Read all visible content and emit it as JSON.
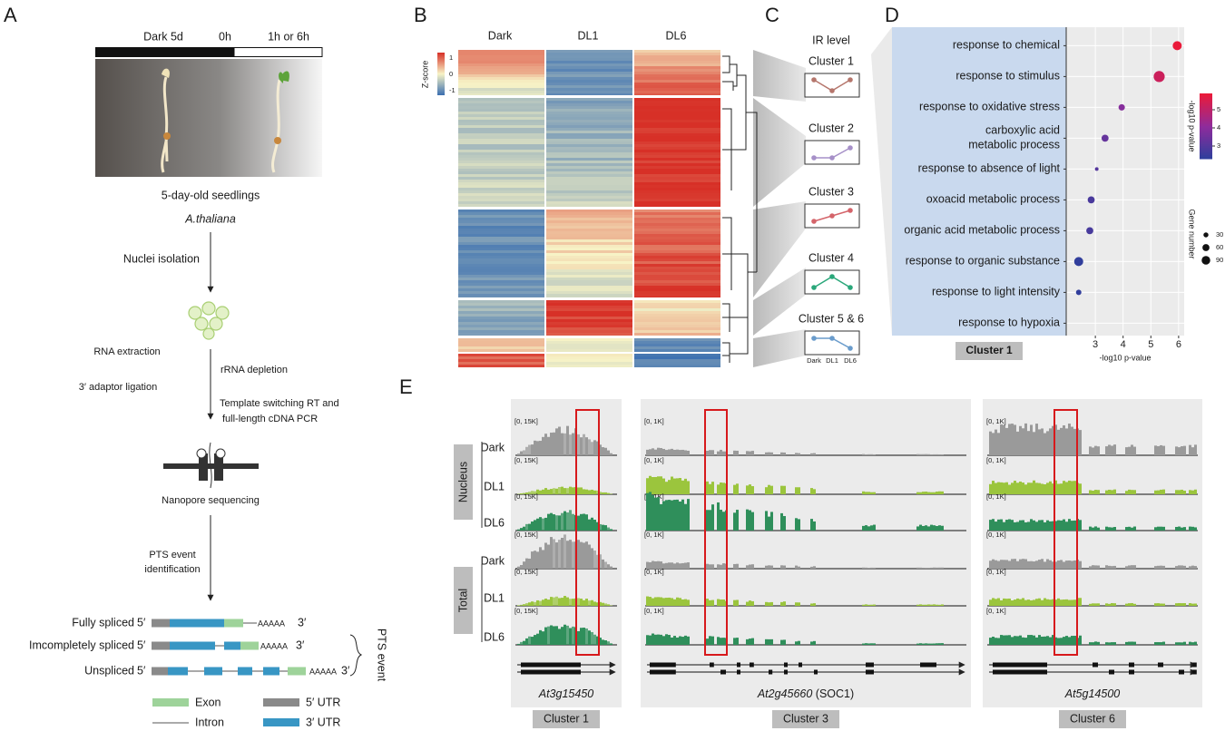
{
  "panel_a": {
    "letter": "A",
    "timeline": [
      "Dark 5d",
      "0h",
      "1h or 6h"
    ],
    "seedlings": "5-day-old seedlings",
    "species": "A.thaliana",
    "nuclei": "Nuclei isolation",
    "rna": "RNA extraction",
    "rrna": "rRNA depletion",
    "adaptor": "3′ adaptor ligation",
    "rt": [
      "Template switching RT and",
      "full-length cDNA PCR"
    ],
    "nanopore": "Nanopore sequencing",
    "pts_step": [
      "PTS event",
      "identification"
    ],
    "isoforms": [
      "Fully spliced",
      "Imcompletely spliced",
      "Unspliced"
    ],
    "five": "5′",
    "three": "3′",
    "polya": "AAAAA",
    "pts_event": "PTS event",
    "legend": [
      "Exon",
      "Intron",
      "5′ UTR",
      "3′ UTR"
    ]
  },
  "panel_b": {
    "letter": "B",
    "columns": [
      "Dark",
      "DL1",
      "DL6"
    ],
    "scale_label": "Z-score",
    "scale_ticks": [
      "1",
      "0",
      "-1"
    ]
  },
  "panel_c": {
    "letter": "C",
    "title": "IR level",
    "clusters": [
      "Cluster 1",
      "Cluster 2",
      "Cluster 3",
      "Cluster 4",
      "Cluster 5 & 6"
    ],
    "axis": [
      "Dark",
      "DL1",
      "DL6"
    ]
  },
  "chart_data": {
    "type": "scatter",
    "letter": "D",
    "categories": [
      "response to chemical",
      "response to stimulus",
      "response to oxidative stress",
      "carboxylic acid metabolic process",
      "response to absence of light",
      "oxoacid metabolic process",
      "organic acid metabolic process",
      "response to organic substance",
      "response to light intensity",
      "response to hypoxia"
    ],
    "values": [
      5.95,
      5.3,
      3.95,
      3.35,
      3.05,
      2.85,
      2.8,
      2.4,
      2.4,
      null
    ],
    "sizes": [
      100,
      150,
      50,
      60,
      16,
      60,
      60,
      100,
      36,
      null
    ],
    "xlabel": "-log10 p-value",
    "xlim": [
      1.95,
      6.2
    ],
    "xticks": [
      3,
      4,
      5,
      6
    ],
    "grid": true,
    "color_label": "-log10 p-value",
    "clim": [
      2.3,
      5.9
    ],
    "color_ticks": [
      3,
      4,
      5
    ],
    "colormap": [
      "#2b3f9c",
      "#8e2c9c",
      "#ea1a3a"
    ],
    "size_label": "Gene number",
    "size_ticks": [
      30,
      60,
      90
    ],
    "highlighted": [
      4,
      8
    ],
    "highlight_color": "#e0262c",
    "footer": "Cluster 1"
  },
  "panel_e": {
    "letter": "E",
    "groups": [
      "Nucleus",
      "Total"
    ],
    "tracks": [
      "Dark",
      "DL1",
      "DL6"
    ],
    "genes": [
      {
        "name": "At3g15450",
        "cluster": "Cluster 1",
        "range": "[0, 15K]"
      },
      {
        "name": "At2g45660",
        "alias": "(SOC1)",
        "cluster": "Cluster 3",
        "range": "[0, 1K]"
      },
      {
        "name": "At5g14500",
        "cluster": "Cluster 6",
        "range": "[0, 1K]"
      }
    ]
  }
}
